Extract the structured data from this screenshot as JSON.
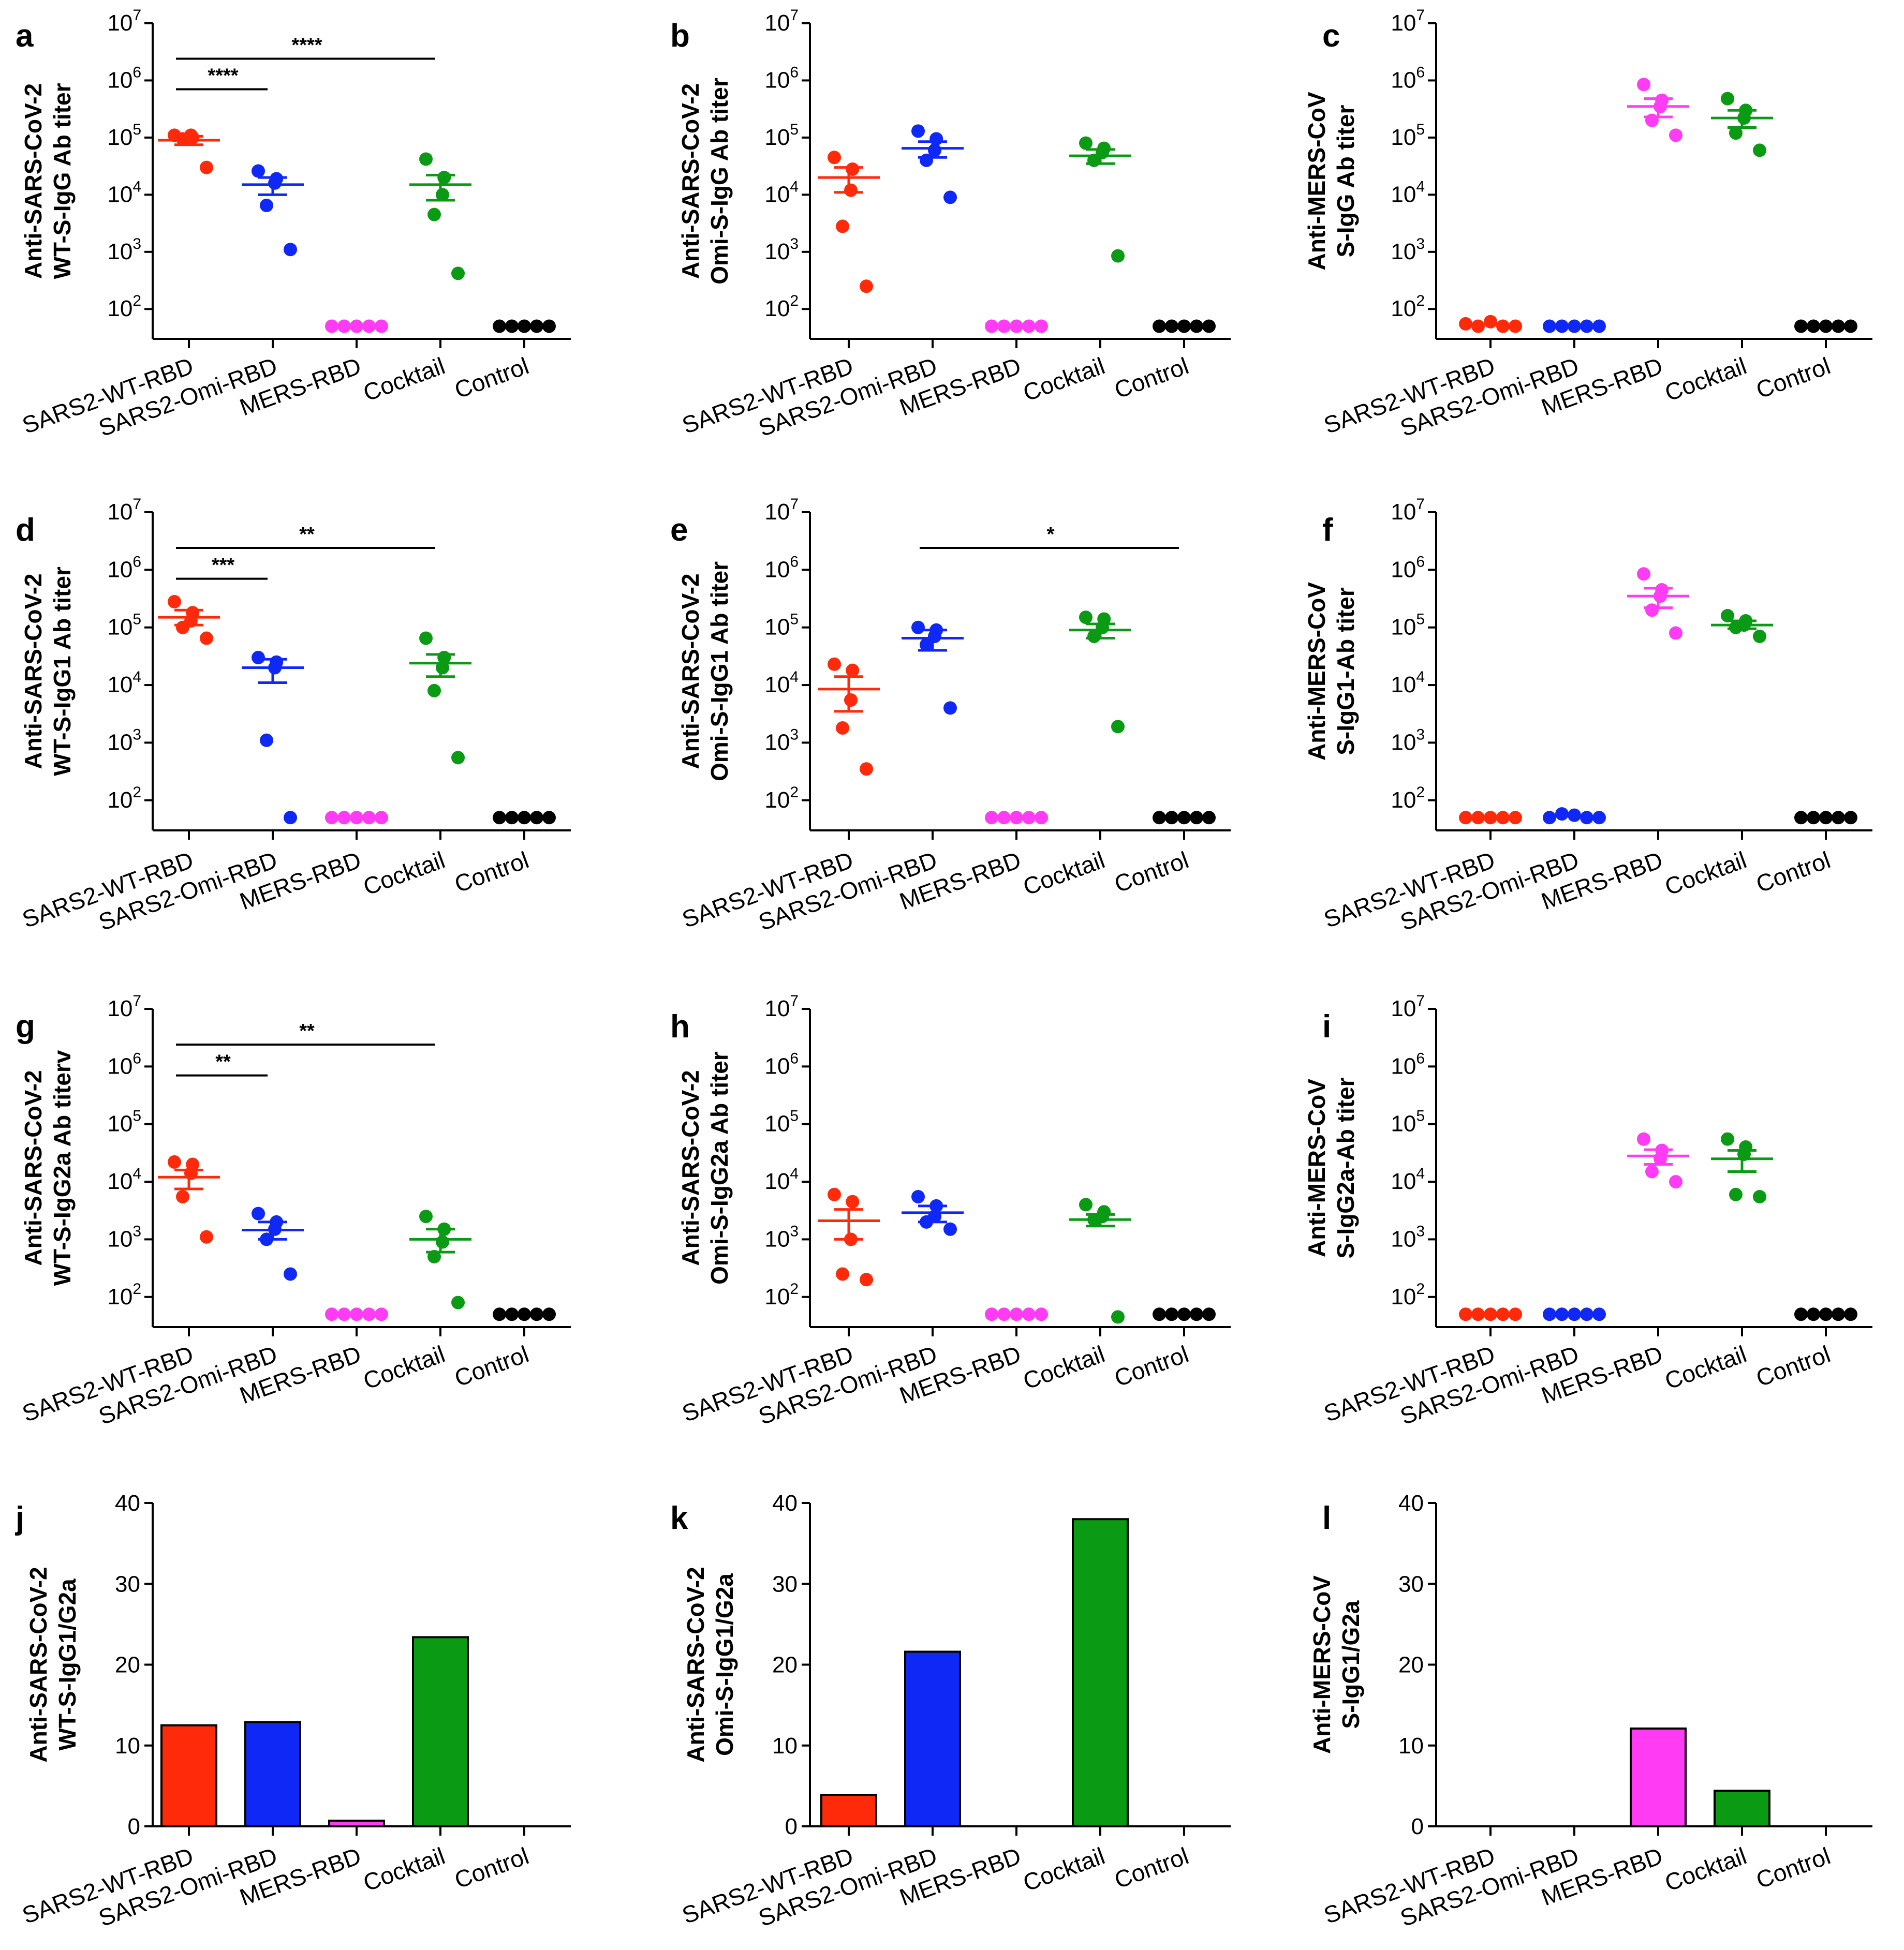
{
  "colors": {
    "SARS2-WT-RBD": "#ff2a0a",
    "SARS2-Omi-RBD": "#0f28f5",
    "MERS-RBD": "#ff3cf4",
    "Cocktail": "#0a9a14",
    "Control": "#000000"
  },
  "chart_data": [
    {
      "panel": "a",
      "type": "scatter",
      "scale": "log",
      "ylabel": [
        "Anti-SARS-CoV-2",
        "WT-S-IgG Ab titer"
      ],
      "ylim": [
        30,
        10000000
      ],
      "yticks": [
        {
          "v": 100,
          "m": "10",
          "e": "2"
        },
        {
          "v": 1000,
          "m": "10",
          "e": "3"
        },
        {
          "v": 10000,
          "m": "10",
          "e": "4"
        },
        {
          "v": 100000,
          "m": "10",
          "e": "5"
        },
        {
          "v": 1000000,
          "m": "10",
          "e": "6"
        },
        {
          "v": 10000000,
          "m": "10",
          "e": "7"
        }
      ],
      "categories": [
        "SARS2-WT-RBD",
        "SARS2-Omi-RBD",
        "MERS-RBD",
        "Cocktail",
        "Control"
      ],
      "points": [
        [
          110000,
          100000,
          110000,
          95000,
          30000
        ],
        [
          26000,
          19000,
          16000,
          6500,
          1100
        ],
        [
          50,
          50,
          50,
          50,
          50
        ],
        [
          42000,
          20000,
          10000,
          4500,
          420
        ],
        [
          50,
          50,
          50,
          50,
          50
        ]
      ],
      "means": [
        90000,
        15000,
        null,
        15000,
        null
      ],
      "sem": [
        [
          75000,
          105000
        ],
        [
          10000,
          20000
        ],
        null,
        [
          8000,
          22000
        ],
        null
      ],
      "significance": [
        {
          "from": 0,
          "to": 1,
          "label": "****",
          "y": 700000
        },
        {
          "from": 0,
          "to": 3,
          "label": "****",
          "y": 2400000
        }
      ]
    },
    {
      "panel": "b",
      "type": "scatter",
      "scale": "log",
      "ylabel": [
        "Anti-SARS-CoV-2",
        "Omi-S-IgG Ab titer"
      ],
      "ylim": [
        30,
        10000000
      ],
      "yticks": [
        {
          "v": 100,
          "m": "10",
          "e": "2"
        },
        {
          "v": 1000,
          "m": "10",
          "e": "3"
        },
        {
          "v": 10000,
          "m": "10",
          "e": "4"
        },
        {
          "v": 100000,
          "m": "10",
          "e": "5"
        },
        {
          "v": 1000000,
          "m": "10",
          "e": "6"
        },
        {
          "v": 10000000,
          "m": "10",
          "e": "7"
        }
      ],
      "categories": [
        "SARS2-WT-RBD",
        "SARS2-Omi-RBD",
        "MERS-RBD",
        "Cocktail",
        "Control"
      ],
      "points": [
        [
          45000,
          28000,
          12000,
          2800,
          250
        ],
        [
          130000,
          95000,
          60000,
          40000,
          9000
        ],
        [
          50,
          50,
          50,
          50,
          50
        ],
        [
          80000,
          65000,
          55000,
          40000,
          850
        ],
        [
          50,
          50,
          50,
          50,
          50
        ]
      ],
      "means": [
        20000,
        65000,
        null,
        48000,
        null
      ],
      "sem": [
        [
          11000,
          30000
        ],
        [
          45000,
          85000
        ],
        null,
        [
          35000,
          62000
        ],
        null
      ],
      "significance": []
    },
    {
      "panel": "c",
      "type": "scatter",
      "scale": "log",
      "ylabel": [
        "Anti-MERS-CoV",
        "S-IgG Ab titer"
      ],
      "ylim": [
        30,
        10000000
      ],
      "yticks": [
        {
          "v": 100,
          "m": "10",
          "e": "2"
        },
        {
          "v": 1000,
          "m": "10",
          "e": "3"
        },
        {
          "v": 10000,
          "m": "10",
          "e": "4"
        },
        {
          "v": 100000,
          "m": "10",
          "e": "5"
        },
        {
          "v": 1000000,
          "m": "10",
          "e": "6"
        },
        {
          "v": 10000000,
          "m": "10",
          "e": "7"
        }
      ],
      "categories": [
        "SARS2-WT-RBD",
        "SARS2-Omi-RBD",
        "MERS-RBD",
        "Cocktail",
        "Control"
      ],
      "points": [
        [
          55,
          50,
          60,
          50,
          50
        ],
        [
          50,
          50,
          50,
          50,
          50
        ],
        [
          850000,
          450000,
          350000,
          200000,
          110000
        ],
        [
          480000,
          300000,
          220000,
          120000,
          60000
        ],
        [
          50,
          50,
          50,
          50,
          50
        ]
      ],
      "means": [
        52,
        50,
        350000,
        220000,
        null
      ],
      "sem": null,
      "semBars": [
        null,
        null,
        [
          230000,
          480000
        ],
        [
          150000,
          300000
        ],
        null
      ],
      "significance": []
    },
    {
      "panel": "d",
      "type": "scatter",
      "scale": "log",
      "ylabel": [
        "Anti-SARS-CoV-2",
        "WT-S-IgG1 Ab titer"
      ],
      "ylim": [
        30,
        10000000
      ],
      "yticks": [
        {
          "v": 100,
          "m": "10",
          "e": "2"
        },
        {
          "v": 1000,
          "m": "10",
          "e": "3"
        },
        {
          "v": 10000,
          "m": "10",
          "e": "4"
        },
        {
          "v": 100000,
          "m": "10",
          "e": "5"
        },
        {
          "v": 1000000,
          "m": "10",
          "e": "6"
        },
        {
          "v": 10000000,
          "m": "10",
          "e": "7"
        }
      ],
      "categories": [
        "SARS2-WT-RBD",
        "SARS2-Omi-RBD",
        "MERS-RBD",
        "Cocktail",
        "Control"
      ],
      "points": [
        [
          280000,
          180000,
          130000,
          100000,
          65000
        ],
        [
          30000,
          25000,
          20000,
          1100,
          50
        ],
        [
          50,
          50,
          50,
          50,
          50
        ],
        [
          65000,
          30000,
          20000,
          8000,
          550
        ],
        [
          50,
          50,
          50,
          50,
          50
        ]
      ],
      "means": [
        150000,
        20000,
        null,
        24000,
        null
      ],
      "sem": [
        [
          110000,
          200000
        ],
        [
          11000,
          28000
        ],
        null,
        [
          14000,
          34000
        ],
        null
      ],
      "significance": [
        {
          "from": 0,
          "to": 1,
          "label": "***",
          "y": 700000
        },
        {
          "from": 0,
          "to": 3,
          "label": "**",
          "y": 2400000
        }
      ]
    },
    {
      "panel": "e",
      "type": "scatter",
      "scale": "log",
      "ylabel": [
        "Anti-SARS-CoV-2",
        "Omi-S-IgG1 Ab titer"
      ],
      "ylim": [
        30,
        10000000
      ],
      "yticks": [
        {
          "v": 100,
          "m": "10",
          "e": "2"
        },
        {
          "v": 1000,
          "m": "10",
          "e": "3"
        },
        {
          "v": 10000,
          "m": "10",
          "e": "4"
        },
        {
          "v": 100000,
          "m": "10",
          "e": "5"
        },
        {
          "v": 1000000,
          "m": "10",
          "e": "6"
        },
        {
          "v": 10000000,
          "m": "10",
          "e": "7"
        }
      ],
      "categories": [
        "SARS2-WT-RBD",
        "SARS2-Omi-RBD",
        "MERS-RBD",
        "Cocktail",
        "Control"
      ],
      "points": [
        [
          23000,
          18000,
          5500,
          1800,
          350
        ],
        [
          100000,
          90000,
          70000,
          50000,
          4000
        ],
        [
          50,
          50,
          50,
          50,
          50
        ],
        [
          150000,
          140000,
          100000,
          70000,
          1900
        ],
        [
          50,
          50,
          50,
          50,
          50
        ]
      ],
      "means": [
        8500,
        65000,
        null,
        90000,
        null
      ],
      "sem": [
        [
          3500,
          14000
        ],
        [
          40000,
          90000
        ],
        null,
        [
          65000,
          115000
        ],
        null
      ],
      "significance": [
        {
          "from": 1,
          "to": 4,
          "label": "*",
          "y": 2400000
        }
      ]
    },
    {
      "panel": "f",
      "type": "scatter",
      "scale": "log",
      "ylabel": [
        "Anti-MERS-CoV",
        "S-IgG1-Ab titer"
      ],
      "ylim": [
        30,
        10000000
      ],
      "yticks": [
        {
          "v": 100,
          "m": "10",
          "e": "2"
        },
        {
          "v": 1000,
          "m": "10",
          "e": "3"
        },
        {
          "v": 10000,
          "m": "10",
          "e": "4"
        },
        {
          "v": 100000,
          "m": "10",
          "e": "5"
        },
        {
          "v": 1000000,
          "m": "10",
          "e": "6"
        },
        {
          "v": 10000000,
          "m": "10",
          "e": "7"
        }
      ],
      "categories": [
        "SARS2-WT-RBD",
        "SARS2-Omi-RBD",
        "MERS-RBD",
        "Cocktail",
        "Control"
      ],
      "points": [
        [
          50,
          50,
          50,
          50,
          50
        ],
        [
          50,
          58,
          55,
          50,
          50
        ],
        [
          850000,
          450000,
          350000,
          200000,
          80000
        ],
        [
          160000,
          130000,
          110000,
          100000,
          70000
        ],
        [
          50,
          50,
          50,
          50,
          50
        ]
      ],
      "means": [
        50,
        52,
        350000,
        110000,
        null
      ],
      "semBars": [
        null,
        null,
        [
          220000,
          480000
        ],
        [
          95000,
          130000
        ],
        null
      ],
      "significance": []
    },
    {
      "panel": "g",
      "type": "scatter",
      "scale": "log",
      "ylabel": [
        "Anti-SARS-CoV-2",
        "WT-S-IgG2a Ab titerv"
      ],
      "ylim": [
        30,
        10000000
      ],
      "yticks": [
        {
          "v": 100,
          "m": "10",
          "e": "2"
        },
        {
          "v": 1000,
          "m": "10",
          "e": "3"
        },
        {
          "v": 10000,
          "m": "10",
          "e": "4"
        },
        {
          "v": 100000,
          "m": "10",
          "e": "5"
        },
        {
          "v": 1000000,
          "m": "10",
          "e": "6"
        },
        {
          "v": 10000000,
          "m": "10",
          "e": "7"
        }
      ],
      "categories": [
        "SARS2-WT-RBD",
        "SARS2-Omi-RBD",
        "MERS-RBD",
        "Cocktail",
        "Control"
      ],
      "points": [
        [
          22000,
          20000,
          14000,
          5500,
          1100
        ],
        [
          2800,
          2000,
          1500,
          1000,
          250
        ],
        [
          50,
          50,
          50,
          50,
          50
        ],
        [
          2500,
          1500,
          900,
          500,
          80
        ],
        [
          50,
          50,
          50,
          50,
          50
        ]
      ],
      "means": [
        12000,
        1450,
        null,
        1000,
        null
      ],
      "sem": [
        [
          7500,
          16000
        ],
        [
          1000,
          2000
        ],
        null,
        [
          600,
          1500
        ],
        null
      ],
      "significance": [
        {
          "from": 0,
          "to": 1,
          "label": "**",
          "y": 700000
        },
        {
          "from": 0,
          "to": 3,
          "label": "**",
          "y": 2400000
        }
      ]
    },
    {
      "panel": "h",
      "type": "scatter",
      "scale": "log",
      "ylabel": [
        "Anti-SARS-CoV-2",
        "Omi-S-IgG2a Ab titer"
      ],
      "ylim": [
        30,
        10000000
      ],
      "yticks": [
        {
          "v": 100,
          "m": "10",
          "e": "2"
        },
        {
          "v": 1000,
          "m": "10",
          "e": "3"
        },
        {
          "v": 10000,
          "m": "10",
          "e": "4"
        },
        {
          "v": 100000,
          "m": "10",
          "e": "5"
        },
        {
          "v": 1000000,
          "m": "10",
          "e": "6"
        },
        {
          "v": 10000000,
          "m": "10",
          "e": "7"
        }
      ],
      "categories": [
        "SARS2-WT-RBD",
        "SARS2-Omi-RBD",
        "MERS-RBD",
        "Cocktail",
        "Control"
      ],
      "points": [
        [
          6000,
          4500,
          1000,
          250,
          200
        ],
        [
          5500,
          3800,
          2500,
          2000,
          1500
        ],
        [
          50,
          50,
          50,
          50,
          50
        ],
        [
          4000,
          3000,
          2500,
          2200,
          45
        ],
        [
          50,
          50,
          50,
          50,
          50
        ]
      ],
      "means": [
        2100,
        2900,
        null,
        2200,
        null
      ],
      "sem": [
        [
          1000,
          3300
        ],
        [
          2000,
          3800
        ],
        null,
        [
          1700,
          2700
        ],
        null
      ],
      "significance": []
    },
    {
      "panel": "i",
      "type": "scatter",
      "scale": "log",
      "ylabel": [
        "Anti-MERS-CoV",
        "S-IgG2a-Ab titer"
      ],
      "ylim": [
        30,
        10000000
      ],
      "yticks": [
        {
          "v": 100,
          "m": "10",
          "e": "2"
        },
        {
          "v": 1000,
          "m": "10",
          "e": "3"
        },
        {
          "v": 10000,
          "m": "10",
          "e": "4"
        },
        {
          "v": 100000,
          "m": "10",
          "e": "5"
        },
        {
          "v": 1000000,
          "m": "10",
          "e": "6"
        },
        {
          "v": 10000000,
          "m": "10",
          "e": "7"
        }
      ],
      "categories": [
        "SARS2-WT-RBD",
        "SARS2-Omi-RBD",
        "MERS-RBD",
        "Cocktail",
        "Control"
      ],
      "points": [
        [
          50,
          50,
          50,
          50,
          50
        ],
        [
          50,
          50,
          50,
          50,
          50
        ],
        [
          55000,
          35000,
          25000,
          15000,
          10000
        ],
        [
          55000,
          40000,
          30000,
          6000,
          5500
        ],
        [
          50,
          50,
          50,
          50,
          50
        ]
      ],
      "means": [
        50,
        50,
        28000,
        25000,
        null
      ],
      "semBars": [
        null,
        null,
        [
          20000,
          36000
        ],
        [
          15000,
          35000
        ],
        null
      ],
      "significance": []
    },
    {
      "panel": "j",
      "type": "bar",
      "ylabel": [
        "Anti-SARS-CoV-2",
        "WT-S-IgG1/G2a"
      ],
      "ylim": [
        0,
        40
      ],
      "yticks": [
        0,
        10,
        20,
        30,
        40
      ],
      "categories": [
        "SARS2-WT-RBD",
        "SARS2-Omi-RBD",
        "MERS-RBD",
        "Cocktail",
        "Control"
      ],
      "values": [
        12.5,
        12.9,
        0.7,
        23.4,
        0
      ]
    },
    {
      "panel": "k",
      "type": "bar",
      "ylabel": [
        "Anti-SARS-CoV-2",
        "Omi-S-IgG1/G2a"
      ],
      "ylim": [
        0,
        40
      ],
      "yticks": [
        0,
        10,
        20,
        30,
        40
      ],
      "categories": [
        "SARS2-WT-RBD",
        "SARS2-Omi-RBD",
        "MERS-RBD",
        "Cocktail",
        "Control"
      ],
      "values": [
        3.9,
        21.6,
        0,
        38,
        0
      ]
    },
    {
      "panel": "l",
      "type": "bar",
      "ylabel": [
        "Anti-MERS-CoV",
        "S-IgG1/G2a"
      ],
      "ylim": [
        0,
        40
      ],
      "yticks": [
        0,
        10,
        20,
        30,
        40
      ],
      "categories": [
        "SARS2-WT-RBD",
        "SARS2-Omi-RBD",
        "MERS-RBD",
        "Cocktail",
        "Control"
      ],
      "values": [
        0,
        0,
        12.1,
        4.4,
        0
      ]
    }
  ]
}
